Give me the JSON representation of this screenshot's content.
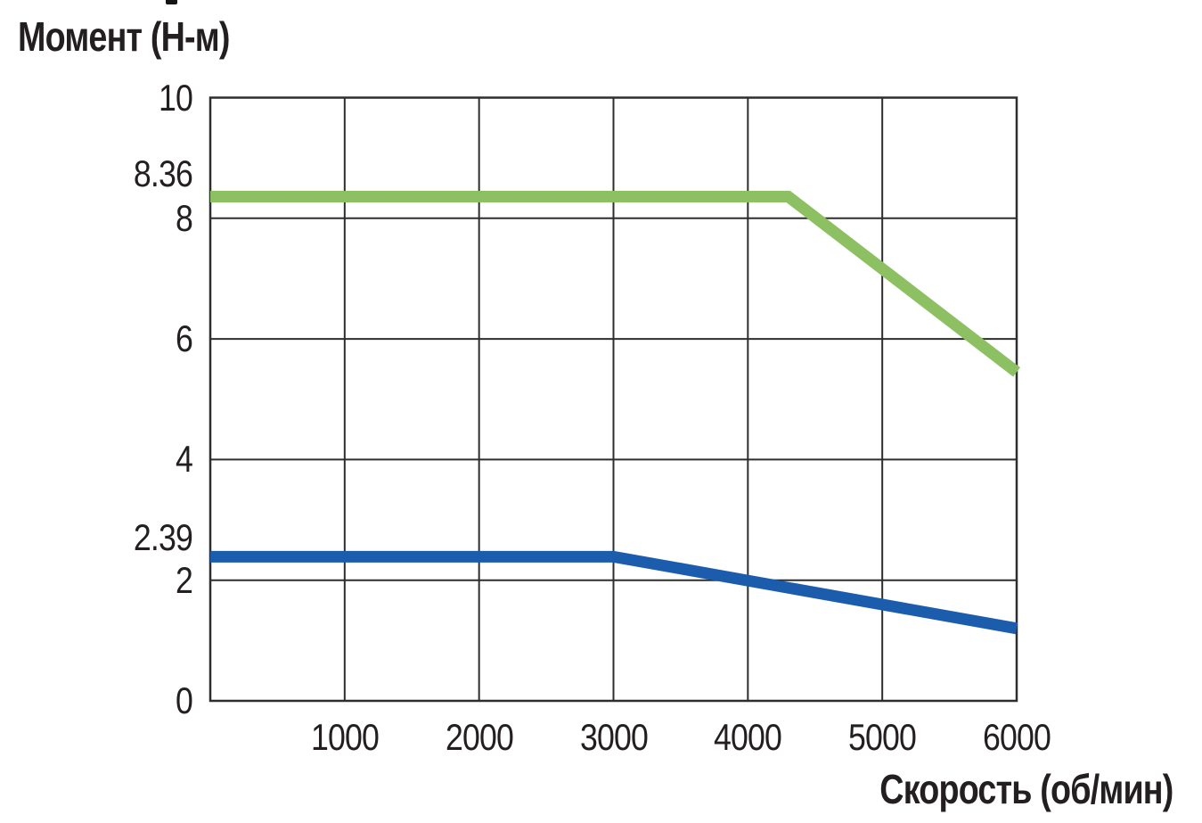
{
  "chart_data": {
    "type": "line",
    "title": "",
    "ylabel": "Момент (Н-м)",
    "xlabel": "Скорость (об/мин)",
    "xlim": [
      0,
      6000
    ],
    "ylim": [
      0,
      10
    ],
    "grid": true,
    "legend": "none",
    "background_color": "#ffffff",
    "grid_color": "#2e2e2e",
    "text_color": "#231f20",
    "x_ticks": [
      {
        "value": 1000,
        "label": "1000"
      },
      {
        "value": 2000,
        "label": "2000"
      },
      {
        "value": 3000,
        "label": "3000"
      },
      {
        "value": 4000,
        "label": "4000"
      },
      {
        "value": 5000,
        "label": "5000"
      },
      {
        "value": 6000,
        "label": "6000"
      }
    ],
    "y_gridlines": [
      0,
      2,
      4,
      6,
      8,
      10
    ],
    "y_ticks": [
      {
        "value": 10,
        "label": "10",
        "dy": 0
      },
      {
        "value": 8.36,
        "label": "8.36",
        "dy": -25
      },
      {
        "value": 8,
        "label": "8",
        "dy": 0
      },
      {
        "value": 6,
        "label": "6",
        "dy": 0
      },
      {
        "value": 4,
        "label": "4",
        "dy": 0
      },
      {
        "value": 2.39,
        "label": "2.39",
        "dy": -21
      },
      {
        "value": 2,
        "label": "2",
        "dy": 0
      },
      {
        "value": 0,
        "label": "0",
        "dy": 0
      }
    ],
    "series": [
      {
        "role": "peak-torque-curve",
        "color": "#8dc063",
        "line_width": 13,
        "points": [
          [
            0,
            8.36
          ],
          [
            4300,
            8.36
          ],
          [
            6000,
            5.45
          ]
        ]
      },
      {
        "role": "rated-torque-curve",
        "color": "#1b5cac",
        "line_width": 13,
        "points": [
          [
            0,
            2.39
          ],
          [
            3000,
            2.39
          ],
          [
            6000,
            1.2
          ]
        ]
      }
    ]
  }
}
